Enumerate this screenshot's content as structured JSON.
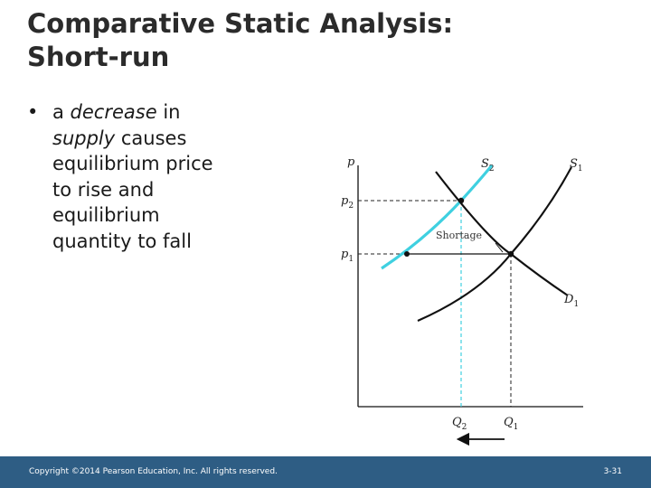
{
  "slide": {
    "title_line1": "Comparative Static Analysis:",
    "title_line2": "Short-run",
    "bullet": {
      "marker": "•",
      "part1": "a ",
      "part2_italic": "decrease",
      "part3": " in",
      "part4_italic": "supply",
      "part5": " causes",
      "line3": "equilibrium price",
      "line4": "to rise and",
      "line5": "equilibrium",
      "line6": "quantity to fall"
    }
  },
  "graph": {
    "axis_y_label": "p",
    "p2_base": "p",
    "p2_sub": "2",
    "p1_base": "p",
    "p1_sub": "1",
    "s2_base": "S",
    "s2_sub": "2",
    "s1_base": "S",
    "s1_sub": "1",
    "d1_base": "D",
    "d1_sub": "1",
    "q2_base": "Q",
    "q2_sub": "2",
    "q1_base": "Q",
    "q1_sub": "1",
    "shortage_label": "Shortage",
    "colors": {
      "new_supply": "#3fd0e0",
      "curves": "#111111",
      "dashed": "#222222"
    }
  },
  "footer": {
    "copyright": "Copyright ©2014 Pearson Education, Inc. All rights reserved.",
    "page": "3-31"
  }
}
